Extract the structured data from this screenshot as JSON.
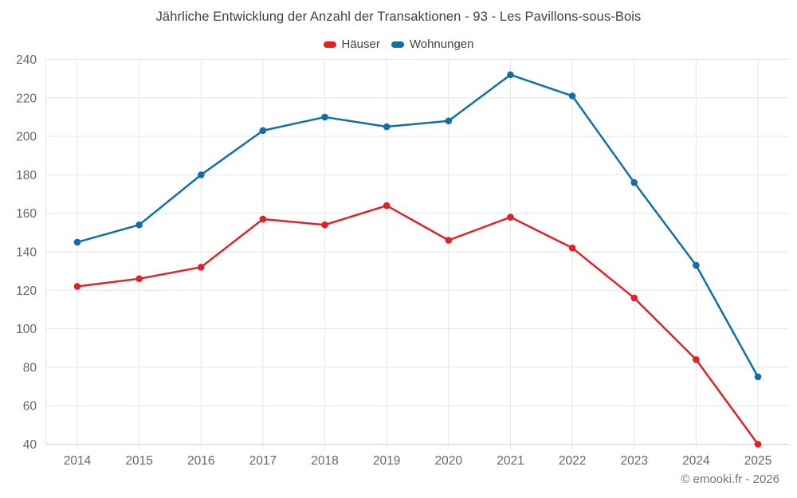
{
  "title": "Jährliche Entwicklung der Anzahl der Transaktionen - 93 - Les Pavillons-sous-Bois",
  "legend": {
    "items": [
      {
        "label": "Häuser",
        "color": "#e02127"
      },
      {
        "label": "Wohnungen",
        "color": "#0f70a8"
      }
    ]
  },
  "footer": {
    "credit": "© emooki.fr - 2026"
  },
  "chart_data": {
    "type": "line",
    "title": "Jährliche Entwicklung der Anzahl der Transaktionen - 93 - Les Pavillons-sous-Bois",
    "categories": [
      "2014",
      "2015",
      "2016",
      "2017",
      "2018",
      "2019",
      "2020",
      "2021",
      "2022",
      "2023",
      "2024",
      "2025"
    ],
    "series": [
      {
        "name": "Häuser",
        "color": "#e02127",
        "values": [
          122,
          126,
          132,
          157,
          154,
          164,
          146,
          158,
          142,
          116,
          84,
          40
        ]
      },
      {
        "name": "Wohnungen",
        "color": "#0f70a8",
        "values": [
          145,
          154,
          180,
          203,
          210,
          205,
          208,
          232,
          221,
          176,
          133,
          75
        ]
      }
    ],
    "xlabel": "",
    "ylabel": "",
    "ylim": [
      40,
      240
    ],
    "ytick_step": 20,
    "grid": true,
    "legend_position": "top"
  },
  "colors": {
    "grid": "#e6e6e6",
    "axis": "#cfcfcf",
    "tick_label": "#666666",
    "title_text": "#3f3f3f",
    "footer_text": "#757575"
  }
}
